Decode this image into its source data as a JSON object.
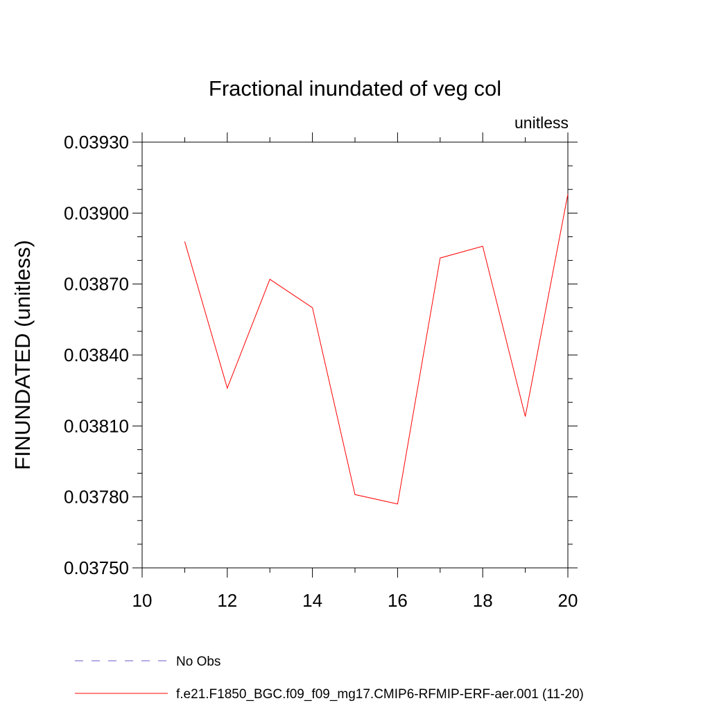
{
  "chart_data": {
    "type": "line",
    "title": "Fractional inundated of veg col",
    "units_label": "unitless",
    "xlabel": "",
    "ylabel": "FINUNDATED  (unitless)",
    "xlim": [
      10,
      20
    ],
    "ylim": [
      0.0375,
      0.0393
    ],
    "x_ticks": [
      10,
      12,
      14,
      16,
      18,
      20
    ],
    "x_tick_labels": [
      "10",
      "12",
      "14",
      "16",
      "18",
      "20"
    ],
    "x_minor_ticks": [
      11,
      13,
      15,
      17,
      19
    ],
    "y_ticks": [
      0.0375,
      0.0378,
      0.0381,
      0.0384,
      0.0387,
      0.039,
      0.0393
    ],
    "y_tick_labels": [
      "0.03750",
      "0.03780",
      "0.03810",
      "0.03840",
      "0.03870",
      "0.03900",
      "0.03930"
    ],
    "y_minor_ticks": [
      0.0376,
      0.0377,
      0.0379,
      0.038,
      0.0382,
      0.0383,
      0.0385,
      0.0386,
      0.0388,
      0.0389,
      0.0391,
      0.0392
    ],
    "grid": false,
    "legend_position": "bottom",
    "series": [
      {
        "name": "f.e21.F1850_BGC.f09_f09_mg17.CMIP6-RFMIP-ERF-aer.001 (11-20)",
        "color": "#ff0000",
        "style": "solid",
        "x": [
          11,
          12,
          13,
          14,
          15,
          16,
          17,
          18,
          19,
          20
        ],
        "y": [
          0.03888,
          0.03826,
          0.03872,
          0.0386,
          0.03781,
          0.03777,
          0.03881,
          0.03886,
          0.03814,
          0.03908
        ]
      }
    ],
    "legend": [
      {
        "name": "No Obs",
        "color": "#6a5acd",
        "style": "dashed"
      },
      {
        "name": "f.e21.F1850_BGC.f09_f09_mg17.CMIP6-RFMIP-ERF-aer.001 (11-20)",
        "color": "#ff0000",
        "style": "solid"
      }
    ]
  }
}
